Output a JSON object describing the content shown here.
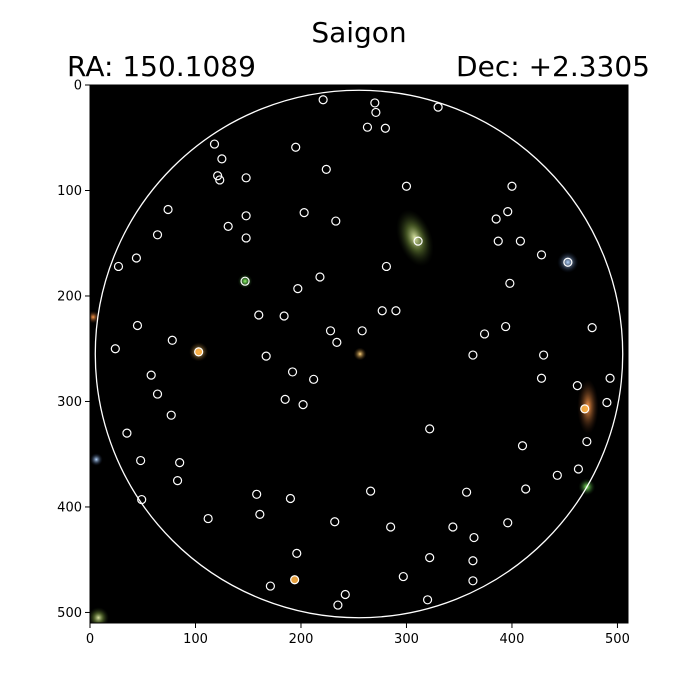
{
  "chart_data": {
    "type": "scatter",
    "title": "Saigon",
    "ra_label": "RA: 150.1089",
    "dec_label": "Dec: +2.3305",
    "xlim": [
      0,
      510
    ],
    "ylim": [
      510,
      0
    ],
    "x_ticks": [
      0,
      100,
      200,
      300,
      400,
      500
    ],
    "y_ticks": [
      0,
      100,
      200,
      300,
      400,
      500
    ],
    "circle": {
      "center": [
        255,
        255
      ],
      "radius": 250,
      "color": "#ffffff"
    },
    "colors": {
      "background": "#000000",
      "marker": "#ffffff",
      "axis": "#000000"
    },
    "points": [
      [
        221,
        14
      ],
      [
        270,
        17
      ],
      [
        271,
        26
      ],
      [
        330,
        21
      ],
      [
        263,
        40
      ],
      [
        280,
        41
      ],
      [
        118,
        56
      ],
      [
        125,
        70
      ],
      [
        195,
        59
      ],
      [
        121,
        86
      ],
      [
        123,
        90
      ],
      [
        148,
        88
      ],
      [
        224,
        80
      ],
      [
        300,
        96
      ],
      [
        400,
        96
      ],
      [
        74,
        118
      ],
      [
        148,
        124
      ],
      [
        203,
        121
      ],
      [
        131,
        134
      ],
      [
        233,
        129
      ],
      [
        385,
        127
      ],
      [
        396,
        120
      ],
      [
        64,
        142
      ],
      [
        148,
        145
      ],
      [
        311,
        148
      ],
      [
        387,
        148
      ],
      [
        408,
        148
      ],
      [
        44,
        164
      ],
      [
        27,
        172
      ],
      [
        428,
        161
      ],
      [
        453,
        168
      ],
      [
        281,
        172
      ],
      [
        147,
        186
      ],
      [
        218,
        182
      ],
      [
        197,
        193
      ],
      [
        398,
        188
      ],
      [
        160,
        218
      ],
      [
        184,
        219
      ],
      [
        277,
        214
      ],
      [
        290,
        214
      ],
      [
        45,
        228
      ],
      [
        228,
        233
      ],
      [
        258,
        233
      ],
      [
        394,
        229
      ],
      [
        476,
        230
      ],
      [
        374,
        236
      ],
      [
        78,
        242
      ],
      [
        234,
        244
      ],
      [
        24,
        250
      ],
      [
        103,
        253
      ],
      [
        167,
        257
      ],
      [
        363,
        256
      ],
      [
        430,
        256
      ],
      [
        58,
        275
      ],
      [
        192,
        272
      ],
      [
        212,
        279
      ],
      [
        428,
        278
      ],
      [
        493,
        278
      ],
      [
        462,
        285
      ],
      [
        64,
        293
      ],
      [
        185,
        298
      ],
      [
        202,
        303
      ],
      [
        490,
        301
      ],
      [
        469,
        307
      ],
      [
        77,
        313
      ],
      [
        322,
        326
      ],
      [
        35,
        330
      ],
      [
        471,
        338
      ],
      [
        410,
        342
      ],
      [
        48,
        356
      ],
      [
        85,
        358
      ],
      [
        463,
        364
      ],
      [
        443,
        370
      ],
      [
        83,
        375
      ],
      [
        266,
        385
      ],
      [
        357,
        386
      ],
      [
        413,
        383
      ],
      [
        49,
        393
      ],
      [
        158,
        388
      ],
      [
        190,
        392
      ],
      [
        112,
        411
      ],
      [
        161,
        407
      ],
      [
        232,
        414
      ],
      [
        285,
        419
      ],
      [
        344,
        419
      ],
      [
        396,
        415
      ],
      [
        364,
        429
      ],
      [
        196,
        444
      ],
      [
        322,
        448
      ],
      [
        363,
        451
      ],
      [
        297,
        466
      ],
      [
        194,
        469
      ],
      [
        363,
        470
      ],
      [
        171,
        475
      ],
      [
        242,
        483
      ],
      [
        320,
        488
      ],
      [
        235,
        493
      ]
    ],
    "highlighted_points": [
      [
        103,
        253
      ],
      [
        469,
        307
      ],
      [
        194,
        469
      ]
    ]
  }
}
